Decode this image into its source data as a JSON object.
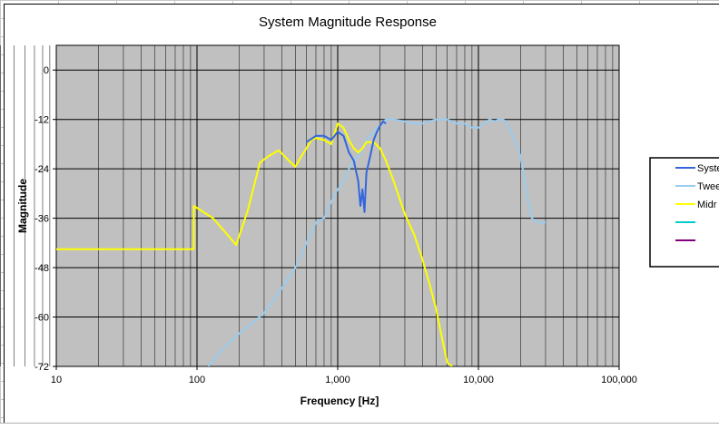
{
  "chart_data": {
    "type": "line",
    "title": "System Magnitude Response",
    "xlabel": "Frequency [Hz]",
    "ylabel": "Magnitude",
    "x_scale": "log",
    "xlim": [
      10,
      100000
    ],
    "ylim": [
      -72,
      6
    ],
    "x_ticks": [
      10,
      100,
      1000,
      10000,
      100000
    ],
    "x_tick_labels": [
      "10",
      "100",
      "1,000",
      "10,000",
      "100,000"
    ],
    "y_ticks": [
      0,
      -12,
      -24,
      -36,
      -48,
      -60,
      -72
    ],
    "y_tick_labels": [
      "0",
      "-12",
      "-24",
      "-36",
      "-48",
      "-60",
      "-72"
    ],
    "grid": true,
    "plot_background": "#c0c0c0",
    "legend_placement": "right",
    "series": [
      {
        "name": "System",
        "legend_label": "Syste",
        "color": "#3366dd",
        "points": [
          [
            600,
            -17.5
          ],
          [
            700,
            -16
          ],
          [
            800,
            -16
          ],
          [
            900,
            -17
          ],
          [
            1000,
            -15
          ],
          [
            1100,
            -16
          ],
          [
            1200,
            -20
          ],
          [
            1300,
            -22
          ],
          [
            1400,
            -27
          ],
          [
            1450,
            -33
          ],
          [
            1500,
            -29
          ],
          [
            1550,
            -34.5
          ],
          [
            1600,
            -25
          ],
          [
            1700,
            -21
          ],
          [
            1800,
            -17
          ],
          [
            1900,
            -15
          ],
          [
            2000,
            -13.5
          ],
          [
            2100,
            -12.5
          ],
          [
            2200,
            -13
          ]
        ]
      },
      {
        "name": "Tweeter",
        "legend_label": "Twee",
        "color": "#99ccee",
        "points": [
          [
            120,
            -72
          ],
          [
            150,
            -68
          ],
          [
            200,
            -64
          ],
          [
            300,
            -59
          ],
          [
            400,
            -53
          ],
          [
            500,
            -48
          ],
          [
            600,
            -42
          ],
          [
            700,
            -37
          ],
          [
            800,
            -36
          ],
          [
            900,
            -32
          ],
          [
            1000,
            -29
          ],
          [
            1100,
            -27
          ],
          [
            1200,
            -24
          ],
          [
            1300,
            -22
          ],
          [
            1400,
            -21
          ],
          [
            1500,
            -19
          ],
          [
            1600,
            -17
          ],
          [
            1800,
            -15
          ],
          [
            2000,
            -13.5
          ],
          [
            2200,
            -12
          ],
          [
            2500,
            -12
          ],
          [
            3000,
            -12.5
          ],
          [
            3500,
            -13
          ],
          [
            4000,
            -13
          ],
          [
            5000,
            -12
          ],
          [
            6000,
            -12
          ],
          [
            7000,
            -13
          ],
          [
            8000,
            -13
          ],
          [
            9000,
            -14
          ],
          [
            10000,
            -14
          ],
          [
            11000,
            -13
          ],
          [
            12000,
            -12
          ],
          [
            13000,
            -12.5
          ],
          [
            14000,
            -12
          ],
          [
            15000,
            -12
          ],
          [
            16000,
            -13
          ],
          [
            18000,
            -17
          ],
          [
            20000,
            -21
          ],
          [
            22000,
            -30
          ],
          [
            24000,
            -36
          ],
          [
            26000,
            -37
          ],
          [
            30000,
            -37
          ]
        ]
      },
      {
        "name": "Midrange",
        "legend_label": "Midr",
        "color": "#ffff00",
        "points": [
          [
            10,
            -43.5
          ],
          [
            95,
            -43.5
          ],
          [
            95,
            -33
          ],
          [
            130,
            -36
          ],
          [
            190,
            -42.5
          ],
          [
            230,
            -34
          ],
          [
            280,
            -22.5
          ],
          [
            320,
            -21
          ],
          [
            380,
            -19.5
          ],
          [
            450,
            -22
          ],
          [
            500,
            -23.5
          ],
          [
            550,
            -21
          ],
          [
            600,
            -19
          ],
          [
            650,
            -17
          ],
          [
            700,
            -16.5
          ],
          [
            800,
            -17
          ],
          [
            900,
            -18
          ],
          [
            1000,
            -13
          ],
          [
            1100,
            -14
          ],
          [
            1200,
            -17
          ],
          [
            1300,
            -19
          ],
          [
            1400,
            -20
          ],
          [
            1500,
            -19
          ],
          [
            1600,
            -17.5
          ],
          [
            1800,
            -17.5
          ],
          [
            2000,
            -19
          ],
          [
            2200,
            -22
          ],
          [
            2500,
            -27
          ],
          [
            2800,
            -32
          ],
          [
            3000,
            -35
          ],
          [
            3500,
            -40
          ],
          [
            4000,
            -46
          ],
          [
            4500,
            -52
          ],
          [
            5000,
            -58
          ],
          [
            5500,
            -65
          ],
          [
            6000,
            -71
          ],
          [
            6500,
            -72
          ]
        ]
      },
      {
        "name": "",
        "legend_label": "",
        "color": "#00cccc",
        "points": []
      },
      {
        "name": "",
        "legend_label": "",
        "color": "#800080",
        "points": []
      },
      {
        "name": "",
        "legend_label": "",
        "color": "#ffffff",
        "points": []
      }
    ]
  }
}
